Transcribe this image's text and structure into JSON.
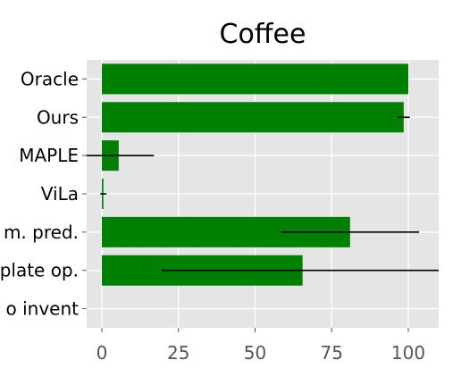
{
  "chart_data": {
    "type": "bar",
    "orientation": "horizontal",
    "title": "Coffee",
    "xlabel": "",
    "ylabel": "",
    "xlim": [
      -5,
      110
    ],
    "xticks": [
      0,
      25,
      50,
      75,
      100
    ],
    "grid": true,
    "bar_color": "#008000",
    "error_color": "#000000",
    "background": "#e5e5e5",
    "categories": [
      "Oracle",
      "Ours",
      "MAPLE",
      "ViLa",
      "m. pred.",
      "plate op.",
      "o invent"
    ],
    "values": [
      100,
      98.5,
      5.5,
      0.5,
      81,
      65.5,
      0
    ],
    "errors": [
      0,
      2,
      11.5,
      1,
      22.5,
      46,
      0
    ]
  }
}
